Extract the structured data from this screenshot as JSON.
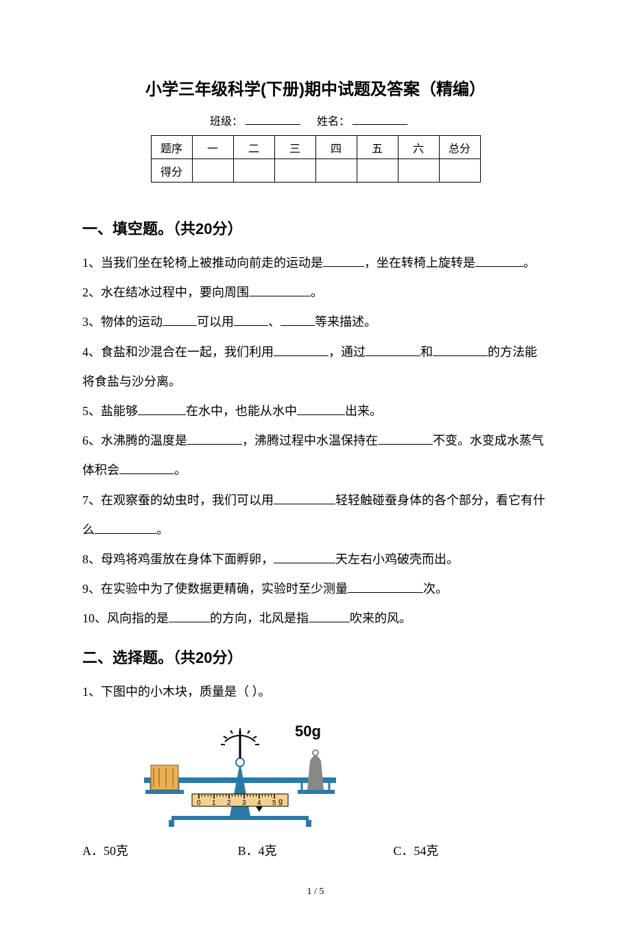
{
  "title": "小学三年级科学(下册)期中试题及答案（精编）",
  "header": {
    "class_label": "班级：",
    "name_label": "姓名："
  },
  "score_table": {
    "row1": [
      "题序",
      "一",
      "二",
      "三",
      "四",
      "五",
      "六",
      "总分"
    ],
    "row2_label": "得分"
  },
  "section1": {
    "heading": "一、填空题。（共20分）",
    "q1_a": "1、当我们坐在轮椅上被推动向前走的运动是",
    "q1_b": "，坐在转椅上旋转是",
    "q1_c": "。",
    "q2_a": "2、水在结冰过程中，要向周围",
    "q2_b": "。",
    "q3_a": "3、物体的运动",
    "q3_b": "可以用",
    "q3_c": "、",
    "q3_d": "等来描述。",
    "q4_a": "4、食盐和沙混合在一起，我们利用",
    "q4_b": "，通过",
    "q4_c": "和",
    "q4_d": "的方法能将食盐与沙分离。",
    "q5_a": "5、盐能够",
    "q5_b": "在水中，也能从水中",
    "q5_c": "出来。",
    "q6_a": "6、水沸腾的温度是",
    "q6_b": "，沸腾过程中水温保持在",
    "q6_c": "不变。水变成水蒸气体积会",
    "q6_d": "。",
    "q7_a": "7、在观察蚕的幼虫时，我们可以用",
    "q7_b": "轻轻触碰蚕身体的各个部分，看它有什么",
    "q7_c": "。",
    "q8_a": "8、母鸡将鸡蛋放在身体下面孵卵，",
    "q8_b": "天左右小鸡破壳而出。",
    "q9_a": "9、在实验中为了使数据更精确，实验时至少测量",
    "q9_b": "次。",
    "q10_a": "10、风向指的是",
    "q10_b": "的方向，北风是指",
    "q10_c": "吹来的风。"
  },
  "section2": {
    "heading": "二、选择题。（共20分）",
    "q1": "1、下图中的小木块，质量是（    ）。",
    "balance": {
      "weight_label": "50g",
      "scale_labels": [
        "0",
        "1",
        "2",
        "3",
        "4",
        "5"
      ],
      "unit": "g",
      "beam_color": "#2a7aa8",
      "base_color": "#2a7aa8",
      "block_color": "#e8b050",
      "weight_color": "#888888",
      "scale_bg": "#f5d090",
      "pointer_value": 4
    },
    "q1_options": {
      "a": "A．50克",
      "b": "B．4克",
      "c": "C．54克"
    }
  },
  "page_num": "1 / 5"
}
